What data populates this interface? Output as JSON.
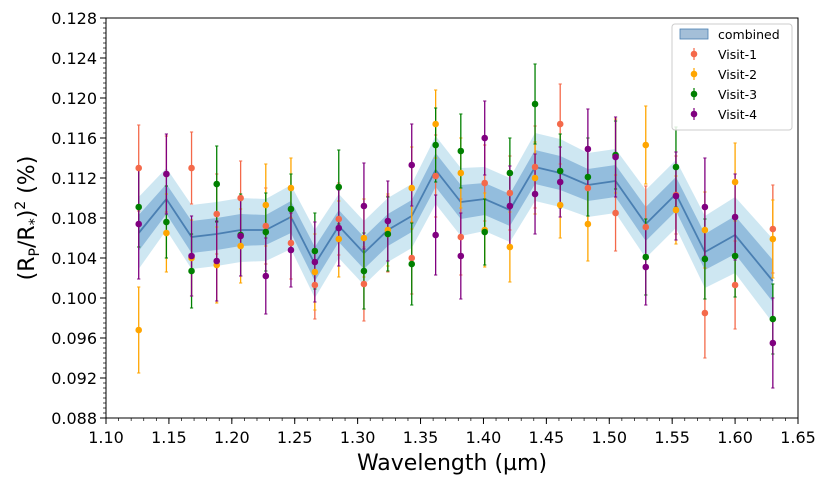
{
  "chart_data": {
    "type": "scatter",
    "title": "",
    "xlabel": "Wavelength (µm)",
    "ylabel_parts": {
      "open": "(R",
      "sub1": "P",
      "mid": "/R",
      "sub2": "*",
      "close": ")",
      "sup": "2",
      "unit": " (%)"
    },
    "xlim": [
      1.1,
      1.65
    ],
    "ylim": [
      0.088,
      0.128
    ],
    "x_ticks": [
      "1.10",
      "1.15",
      "1.20",
      "1.25",
      "1.30",
      "1.35",
      "1.40",
      "1.45",
      "1.50",
      "1.55",
      "1.60",
      "1.65"
    ],
    "y_ticks": [
      "0.088",
      "0.092",
      "0.096",
      "0.100",
      "0.104",
      "0.108",
      "0.112",
      "0.116",
      "0.120",
      "0.124",
      "0.128"
    ],
    "x": [
      1.126,
      1.148,
      1.168,
      1.188,
      1.207,
      1.227,
      1.247,
      1.266,
      1.285,
      1.305,
      1.324,
      1.343,
      1.362,
      1.382,
      1.401,
      1.421,
      1.441,
      1.461,
      1.483,
      1.505,
      1.529,
      1.553,
      1.576,
      1.6,
      1.63
    ],
    "combined": {
      "name": "combined",
      "color": "#4a7fb2",
      "mean": [
        0.1065,
        0.1099,
        0.1061,
        0.1064,
        0.1068,
        0.1068,
        0.1081,
        0.1034,
        0.1072,
        0.1045,
        0.1068,
        0.1082,
        0.1128,
        0.1096,
        0.1099,
        0.1088,
        0.1131,
        0.1125,
        0.1113,
        0.1117,
        0.1074,
        0.1104,
        0.1046,
        0.1063,
        0.1017
      ],
      "sigma1": [
        0.0018,
        0.0015,
        0.0016,
        0.0016,
        0.0016,
        0.0015,
        0.0016,
        0.0017,
        0.0016,
        0.0016,
        0.0016,
        0.0016,
        0.0017,
        0.0017,
        0.0016,
        0.0016,
        0.0017,
        0.0017,
        0.0016,
        0.0016,
        0.0017,
        0.0017,
        0.0018,
        0.0019,
        0.0021
      ],
      "sigma2": [
        0.0036,
        0.0031,
        0.0032,
        0.0032,
        0.0032,
        0.0031,
        0.0032,
        0.0034,
        0.0032,
        0.0032,
        0.0032,
        0.0032,
        0.0034,
        0.0034,
        0.0032,
        0.0032,
        0.0034,
        0.0034,
        0.0032,
        0.0032,
        0.0034,
        0.0034,
        0.0036,
        0.0038,
        0.0042
      ]
    },
    "series": [
      {
        "name": "Visit-1",
        "color": "#f4694a",
        "offset": 0,
        "values": [
          0.113,
          0.1124,
          0.113,
          0.1084,
          0.11,
          0.1072,
          0.1055,
          0.1013,
          0.1079,
          0.1014,
          0.1064,
          0.104,
          0.1122,
          0.1061,
          0.1115,
          0.1105,
          0.1131,
          0.1174,
          0.111,
          0.1085,
          0.1071,
          0.1103,
          0.0985,
          0.1013,
          0.1069
        ],
        "errors": [
          0.0043,
          0.0038,
          0.0036,
          0.004,
          0.0037,
          0.0038,
          0.0036,
          0.0034,
          0.0036,
          0.0037,
          0.0038,
          0.0036,
          0.0041,
          0.0038,
          0.0038,
          0.0037,
          0.0041,
          0.004,
          0.0038,
          0.0038,
          0.0041,
          0.0039,
          0.0045,
          0.0044,
          0.0044
        ]
      },
      {
        "name": "Visit-2",
        "color": "#ffa500",
        "offset": 0,
        "values": [
          0.0968,
          0.1065,
          0.104,
          0.1033,
          0.1052,
          0.1093,
          0.111,
          0.1026,
          0.1059,
          0.106,
          0.1068,
          0.111,
          0.1174,
          0.1125,
          0.1068,
          0.1051,
          0.112,
          0.1093,
          0.1074,
          0.1142,
          0.1153,
          0.1088,
          0.1068,
          0.1116,
          0.1059
        ],
        "errors": [
          0.0043,
          0.0039,
          0.0038,
          0.0038,
          0.0037,
          0.0041,
          0.003,
          0.0038,
          0.0038,
          0.0039,
          0.0036,
          0.0041,
          0.0034,
          0.0035,
          0.0037,
          0.0035,
          0.0036,
          0.0033,
          0.0037,
          0.0037,
          0.0039,
          0.0034,
          0.0038,
          0.0039,
          0.0039
        ]
      },
      {
        "name": "Visit-3",
        "color": "#008000",
        "offset": 0,
        "values": [
          0.1091,
          0.1076,
          0.1027,
          0.1114,
          0.1063,
          0.1066,
          0.1089,
          0.1047,
          0.1111,
          0.1027,
          0.1064,
          0.1034,
          0.1153,
          0.1147,
          0.1066,
          0.1125,
          0.1194,
          0.1127,
          0.1121,
          0.1143,
          0.1041,
          0.1131,
          0.1039,
          0.1042,
          0.0979
        ],
        "errors": [
          0.004,
          0.0036,
          0.0037,
          0.0038,
          0.0041,
          0.0039,
          0.0035,
          0.0038,
          0.0037,
          0.0038,
          0.0037,
          0.0041,
          0.0037,
          0.0037,
          0.0033,
          0.0035,
          0.004,
          0.0037,
          0.0039,
          0.0034,
          0.0038,
          0.004,
          0.004,
          0.0041,
          0.0035
        ]
      },
      {
        "name": "Visit-4",
        "color": "#800080",
        "offset": 0,
        "values": [
          0.1074,
          0.1124,
          0.1042,
          0.1037,
          0.1062,
          0.1022,
          0.1048,
          0.1036,
          0.107,
          0.1092,
          0.1077,
          0.1133,
          0.1063,
          0.1042,
          0.116,
          0.1092,
          0.1104,
          0.1116,
          0.1149,
          0.1141,
          0.1031,
          0.1102,
          0.1091,
          0.1081,
          0.0955
        ],
        "errors": [
          0.0055,
          0.004,
          0.004,
          0.004,
          0.004,
          0.0038,
          0.0037,
          0.004,
          0.0038,
          0.0043,
          0.004,
          0.0041,
          0.004,
          0.0043,
          0.0037,
          0.004,
          0.004,
          0.0035,
          0.004,
          0.004,
          0.0038,
          0.0044,
          0.0049,
          0.0043,
          0.0045
        ]
      }
    ],
    "legend": {
      "placement": "top-right",
      "entries": [
        "combined",
        "Visit-1",
        "Visit-2",
        "Visit-3",
        "Visit-4"
      ]
    },
    "grid": false
  }
}
